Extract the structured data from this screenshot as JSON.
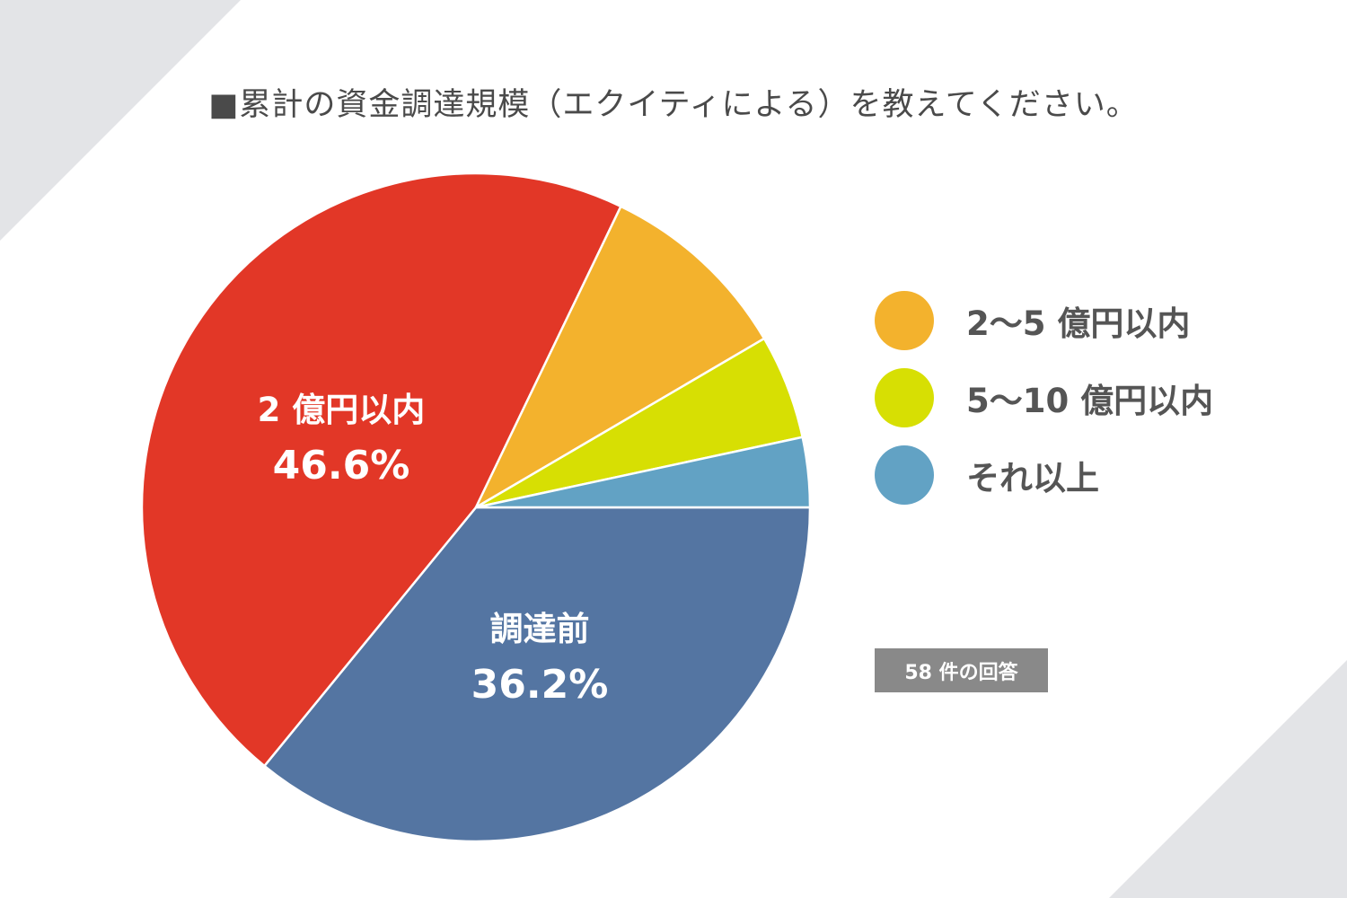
{
  "title": "■累計の資金調達規模（エクイティによる）を教えてください。",
  "response_badge": "58 件の回答",
  "chart_data": {
    "type": "pie",
    "title": "■累計の資金調達規模（エクイティによる）を教えてください。",
    "slices": [
      {
        "key": "pre",
        "label": "調達前",
        "value": 36.2,
        "percent_label": "36.2%",
        "color": "#5475a2"
      },
      {
        "key": "under2",
        "label": "2 億円以内",
        "value": 46.6,
        "percent_label": "46.6%",
        "color": "#e23727"
      },
      {
        "key": "2to5",
        "label": "2〜5 億円以内",
        "value": 9.5,
        "color": "#f3b22d"
      },
      {
        "key": "5to10",
        "label": "5〜10 億円以内",
        "value": 5.1,
        "color": "#d7df03"
      },
      {
        "key": "more",
        "label": "それ以上",
        "value": 3.4,
        "color": "#62a2c4"
      }
    ],
    "legend": {
      "placement": "right",
      "items": [
        {
          "label": "2〜5 億円以内",
          "color": "#f3b22d"
        },
        {
          "label": "5〜10 億円以内",
          "color": "#d7df03"
        },
        {
          "label": "それ以上",
          "color": "#62a2c4"
        }
      ]
    }
  }
}
